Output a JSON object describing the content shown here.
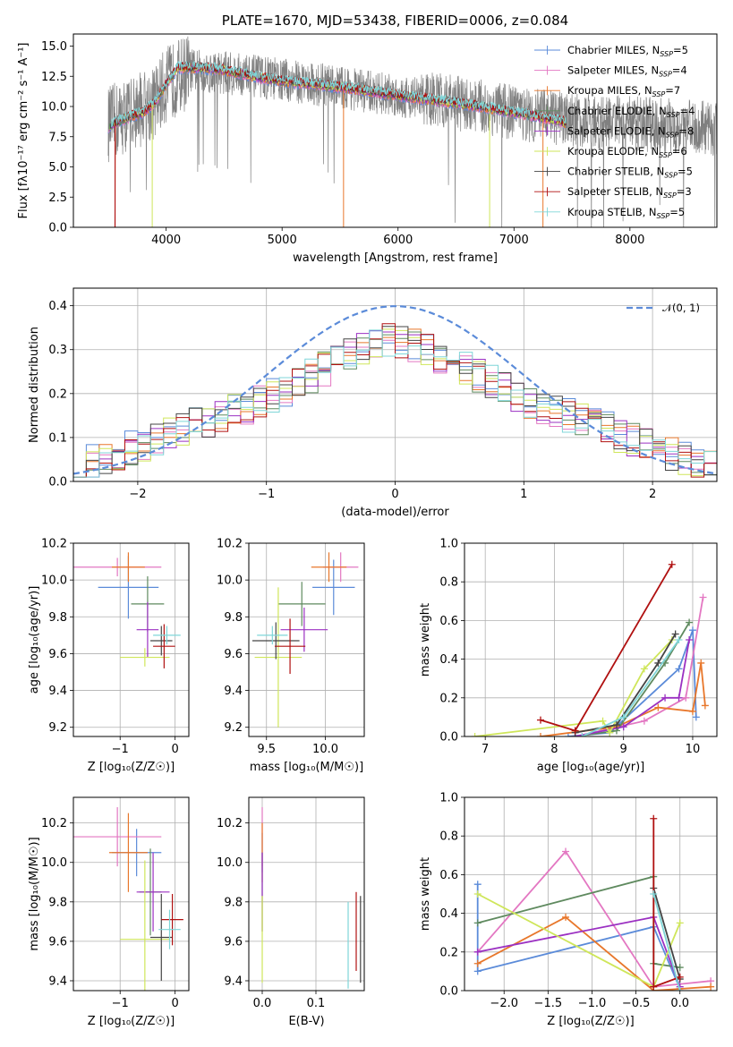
{
  "colors": {
    "chabrier_miles": "#5b8bd9",
    "salpeter_miles": "#e377c2",
    "kroupa_miles": "#e8772b",
    "chabrier_elodie": "#5f8a5f",
    "salpeter_elodie": "#9b30c2",
    "kroupa_elodie": "#cfe65a",
    "chabrier_stelib": "#444444",
    "salpeter_stelib": "#b01010",
    "kroupa_stelib": "#7fd6d8",
    "data_grey": "#808080",
    "normal_curve": "#5b8bd9"
  },
  "chart_data": [
    {
      "id": "spectrum",
      "type": "line",
      "title": "PLATE=1670, MJD=53438, FIBERID=0006, z=0.084",
      "xlabel": "wavelength [Angstrom, rest frame]",
      "ylabel": "Flux [fλ10⁻¹⁷ erg cm⁻² s⁻¹ A⁻¹]",
      "xlim": [
        3200,
        8750
      ],
      "ylim": [
        0,
        16
      ],
      "xticks": [
        4000,
        5000,
        6000,
        7000,
        8000
      ],
      "yticks": [
        0.0,
        2.5,
        5.0,
        7.5,
        10.0,
        12.5,
        15.0
      ],
      "grid": false,
      "legend": "upper right",
      "legend_entries": [
        "Chabrier MILES, N_SSP=5",
        "Salpeter MILES, N_SSP=4",
        "Kroupa MILES, N_SSP=7",
        "Chabrier ELODIE, N_SSP=4",
        "Salpeter ELODIE, N_SSP=8",
        "Kroupa ELODIE, N_SSP=6",
        "Chabrier STELIB, N_SSP=5",
        "Salpeter STELIB, N_SSP=3",
        "Kroupa STELIB, N_SSP=5"
      ],
      "model_continuum": {
        "x": [
          3500,
          3600,
          3700,
          3800,
          3900,
          4000,
          4100,
          4300,
          4500,
          4800,
          5000,
          5500,
          6000,
          6500,
          7000,
          7300,
          7600
        ],
        "y": [
          8.3,
          8.8,
          9.2,
          9.5,
          10.3,
          11.8,
          13.2,
          13.2,
          13.0,
          12.4,
          12.1,
          11.6,
          10.9,
          10.3,
          9.5,
          9.0,
          8.3
        ]
      },
      "data_continuum": {
        "x": [
          3500,
          3700,
          3900,
          4000,
          4200,
          4500,
          5000,
          5500,
          6000,
          6500,
          7000,
          7500,
          8000,
          8500,
          8750
        ],
        "y": [
          8.5,
          9.5,
          10.3,
          11.8,
          13.0,
          12.8,
          12.2,
          11.6,
          10.9,
          10.3,
          9.5,
          8.9,
          8.6,
          8.3,
          8.2
        ]
      },
      "model_wavelength_range": [
        3500,
        7450
      ],
      "data_wavelength_range": [
        3500,
        8750
      ]
    },
    {
      "id": "residuals",
      "type": "line",
      "xlabel": "(data-model)/error",
      "ylabel": "Normed distribution",
      "xlim": [
        -2.5,
        2.5
      ],
      "ylim": [
        0,
        0.44
      ],
      "xticks": [
        -2,
        -1,
        0,
        1,
        2
      ],
      "yticks": [
        0.0,
        0.1,
        0.2,
        0.3,
        0.4
      ],
      "grid": true,
      "legend": "upper right",
      "legend_entries": [
        "𝒩(0, 1)"
      ],
      "bin_width": 0.1,
      "histogram_envelope": [
        0.035,
        0.045,
        0.055,
        0.065,
        0.075,
        0.085,
        0.095,
        0.105,
        0.12,
        0.13,
        0.14,
        0.15,
        0.16,
        0.17,
        0.18,
        0.195,
        0.21,
        0.225,
        0.24,
        0.255,
        0.27,
        0.285,
        0.3,
        0.31,
        0.32,
        0.33,
        0.335,
        0.34,
        0.345,
        0.35,
        0.35,
        0.345,
        0.335,
        0.325,
        0.315,
        0.3,
        0.29,
        0.28,
        0.27,
        0.26,
        0.25,
        0.235,
        0.22,
        0.205,
        0.19,
        0.17,
        0.155,
        0.14,
        0.125,
        0.11
      ]
    },
    {
      "id": "age_vs_Z",
      "type": "scatter",
      "xlabel": "Z [log₁₀(Z/Z☉)]",
      "ylabel": "age  [log₁₀(age/yr)]",
      "xlim": [
        -1.85,
        0.25
      ],
      "ylim": [
        9.15,
        10.2
      ],
      "xticks": [
        -1,
        0
      ],
      "yticks": [
        9.2,
        9.4,
        9.6,
        9.8,
        10.0,
        10.2
      ],
      "grid": true,
      "points": [
        {
          "model": "chabrier_miles",
          "x": -0.85,
          "xerr": 0.55,
          "y": 9.96,
          "yerr": 0.17
        },
        {
          "model": "salpeter_miles",
          "x": -1.05,
          "xerr": 0.8,
          "y": 10.07,
          "yerr": 0.05
        },
        {
          "model": "kroupa_miles",
          "x": -0.85,
          "xerr": 0.3,
          "y": 10.07,
          "yerr": 0.08
        },
        {
          "model": "chabrier_elodie",
          "x": -0.5,
          "xerr": 0.3,
          "y": 9.87,
          "yerr": 0.15
        },
        {
          "model": "salpeter_elodie",
          "x": -0.5,
          "xerr": 0.2,
          "y": 9.73,
          "yerr": 0.15
        },
        {
          "model": "kroupa_elodie",
          "x": -0.55,
          "xerr": 0.45,
          "y": 9.58,
          "yerr": 0.05
        },
        {
          "model": "chabrier_stelib",
          "x": -0.25,
          "xerr": 0.2,
          "y": 9.67,
          "yerr": 0.08
        },
        {
          "model": "salpeter_stelib",
          "x": -0.2,
          "xerr": 0.2,
          "y": 9.64,
          "yerr": 0.12
        },
        {
          "model": "kroupa_stelib",
          "x": -0.15,
          "xerr": 0.25,
          "y": 9.7,
          "yerr": 0.05
        }
      ]
    },
    {
      "id": "age_vs_mass",
      "type": "scatter",
      "xlabel": "mass [log₁₀(M/M☉)]",
      "ylabel": "",
      "xlim": [
        9.35,
        10.33
      ],
      "ylim": [
        9.15,
        10.2
      ],
      "xticks": [
        9.5,
        10.0
      ],
      "yticks": [
        9.2,
        9.4,
        9.6,
        9.8,
        10.0,
        10.2
      ],
      "grid": true,
      "points": [
        {
          "model": "chabrier_miles",
          "x": 10.07,
          "xerr": 0.18,
          "y": 9.96,
          "yerr": 0.15
        },
        {
          "model": "salpeter_miles",
          "x": 10.13,
          "xerr": 0.15,
          "y": 10.07,
          "yerr": 0.08
        },
        {
          "model": "kroupa_miles",
          "x": 10.03,
          "xerr": 0.15,
          "y": 10.07,
          "yerr": 0.08
        },
        {
          "model": "chabrier_elodie",
          "x": 9.8,
          "xerr": 0.2,
          "y": 9.87,
          "yerr": 0.12
        },
        {
          "model": "salpeter_elodie",
          "x": 9.82,
          "xerr": 0.2,
          "y": 9.73,
          "yerr": 0.12
        },
        {
          "model": "kroupa_elodie",
          "x": 9.6,
          "xerr": 0.2,
          "y": 9.58,
          "yerr": 0.38
        },
        {
          "model": "chabrier_stelib",
          "x": 9.58,
          "xerr": 0.2,
          "y": 9.67,
          "yerr": 0.1
        },
        {
          "model": "salpeter_stelib",
          "x": 9.7,
          "xerr": 0.13,
          "y": 9.64,
          "yerr": 0.15
        },
        {
          "model": "kroupa_stelib",
          "x": 9.55,
          "xerr": 0.13,
          "y": 9.7,
          "yerr": 0.05
        }
      ]
    },
    {
      "id": "weight_vs_age",
      "type": "line",
      "xlabel": "age  [log₁₀(age/yr)]",
      "ylabel": "mass weight",
      "xlim": [
        6.7,
        10.35
      ],
      "ylim": [
        0,
        1.0
      ],
      "xticks": [
        7,
        8,
        9,
        10
      ],
      "yticks": [
        0.0,
        0.2,
        0.4,
        0.6,
        0.8,
        1.0
      ],
      "grid": true,
      "series": [
        {
          "model": "chabrier_miles",
          "x": [
            8.2,
            8.8,
            9.8,
            10.0,
            10.05
          ],
          "y": [
            0.0,
            0.02,
            0.35,
            0.55,
            0.1
          ]
        },
        {
          "model": "salpeter_miles",
          "x": [
            8.3,
            9.3,
            9.9,
            10.15
          ],
          "y": [
            0.0,
            0.08,
            0.2,
            0.72
          ]
        },
        {
          "model": "kroupa_miles",
          "x": [
            7.8,
            8.9,
            9.5,
            10.0,
            10.12,
            10.18
          ],
          "y": [
            0.0,
            0.05,
            0.15,
            0.13,
            0.38,
            0.16
          ]
        },
        {
          "model": "chabrier_elodie",
          "x": [
            8.3,
            8.9,
            9.6,
            9.95
          ],
          "y": [
            0.0,
            0.03,
            0.38,
            0.59
          ]
        },
        {
          "model": "salpeter_elodie",
          "x": [
            8.3,
            9.0,
            9.6,
            9.8,
            9.95
          ],
          "y": [
            0.0,
            0.05,
            0.2,
            0.2,
            0.5
          ]
        },
        {
          "model": "kroupa_elodie",
          "x": [
            6.85,
            8.7,
            8.8,
            9.3,
            9.7
          ],
          "y": [
            0.0,
            0.08,
            0.02,
            0.35,
            0.5
          ]
        },
        {
          "model": "chabrier_stelib",
          "x": [
            8.3,
            8.9,
            9.5,
            9.75
          ],
          "y": [
            0.02,
            0.06,
            0.38,
            0.53
          ]
        },
        {
          "model": "salpeter_stelib",
          "x": [
            7.8,
            8.3,
            9.7
          ],
          "y": [
            0.085,
            0.03,
            0.89
          ]
        },
        {
          "model": "kroupa_stelib",
          "x": [
            8.4,
            9.0,
            9.8
          ],
          "y": [
            0.0,
            0.1,
            0.5
          ]
        }
      ]
    },
    {
      "id": "mass_vs_Z",
      "type": "scatter",
      "xlabel": "Z [log₁₀(Z/Z☉)]",
      "ylabel": "mass [log₁₀(M/M☉)]",
      "xlim": [
        -1.85,
        0.25
      ],
      "ylim": [
        9.35,
        10.33
      ],
      "xticks": [
        -1,
        0
      ],
      "yticks": [
        9.4,
        9.6,
        9.8,
        10.0,
        10.2
      ],
      "grid": true,
      "points": [
        {
          "model": "chabrier_miles",
          "x": -0.7,
          "xerr": 0.45,
          "y": 10.05,
          "yerr": 0.12
        },
        {
          "model": "salpeter_miles",
          "x": -1.05,
          "xerr": 0.8,
          "y": 10.13,
          "yerr": 0.15
        },
        {
          "model": "kroupa_miles",
          "x": -0.85,
          "xerr": 0.35,
          "y": 10.05,
          "yerr": 0.2
        },
        {
          "model": "chabrier_elodie",
          "x": -0.45,
          "xerr": 0.2,
          "y": 9.85,
          "yerr": 0.22
        },
        {
          "model": "salpeter_elodie",
          "x": -0.4,
          "xerr": 0.3,
          "y": 9.85,
          "yerr": 0.2
        },
        {
          "model": "kroupa_elodie",
          "x": -0.55,
          "xerr": 0.45,
          "y": 9.61,
          "yerr": 0.4
        },
        {
          "model": "chabrier_stelib",
          "x": -0.25,
          "xerr": 0.2,
          "y": 9.62,
          "yerr": 0.22
        },
        {
          "model": "salpeter_stelib",
          "x": -0.05,
          "xerr": 0.2,
          "y": 9.71,
          "yerr": 0.13
        },
        {
          "model": "kroupa_stelib",
          "x": -0.1,
          "xerr": 0.2,
          "y": 9.66,
          "yerr": 0.1
        }
      ]
    },
    {
      "id": "mass_vs_EBV",
      "type": "scatter",
      "xlabel": "E(B-V)",
      "ylabel": "",
      "xlim": [
        -0.025,
        0.19
      ],
      "ylim": [
        9.35,
        10.33
      ],
      "xticks": [
        0.0,
        0.1
      ],
      "yticks": [
        9.4,
        9.6,
        9.8,
        10.0,
        10.2
      ],
      "grid": true,
      "points": [
        {
          "model": "chabrier_miles",
          "x": 0.0,
          "y": 10.05,
          "yerr": 0.1
        },
        {
          "model": "salpeter_miles",
          "x": 0.0,
          "y": 10.13,
          "yerr": 0.15
        },
        {
          "model": "kroupa_miles",
          "x": 0.0,
          "y": 10.05,
          "yerr": 0.15
        },
        {
          "model": "chabrier_elodie",
          "x": 0.0,
          "y": 9.85,
          "yerr": 0.2
        },
        {
          "model": "salpeter_elodie",
          "x": 0.0,
          "y": 9.85,
          "yerr": 0.2
        },
        {
          "model": "kroupa_elodie",
          "x": 0.0,
          "y": 9.61,
          "yerr": 0.22
        },
        {
          "model": "chabrier_stelib",
          "x": 0.183,
          "y": 9.61,
          "yerr": 0.22
        },
        {
          "model": "salpeter_stelib",
          "x": 0.175,
          "y": 9.65,
          "yerr": 0.2
        },
        {
          "model": "kroupa_stelib",
          "x": 0.16,
          "y": 9.58,
          "yerr": 0.22
        }
      ]
    },
    {
      "id": "weight_vs_Z",
      "type": "line",
      "xlabel": "Z [log₁₀(Z/Z☉)]",
      "ylabel": "mass weight",
      "xlim": [
        -2.45,
        0.42
      ],
      "ylim": [
        0,
        1.0
      ],
      "xticks": [
        -2.0,
        -1.5,
        -1.0,
        -0.5,
        0.0
      ],
      "yticks": [
        0.0,
        0.2,
        0.4,
        0.6,
        0.8,
        1.0
      ],
      "grid": true,
      "series": [
        {
          "model": "chabrier_miles",
          "x": [
            -2.3,
            -2.3,
            -0.3,
            0.0
          ],
          "y": [
            0.55,
            0.1,
            0.33,
            0.01
          ]
        },
        {
          "model": "salpeter_miles",
          "x": [
            -2.3,
            -1.3,
            -0.3,
            0.35
          ],
          "y": [
            0.2,
            0.72,
            0.02,
            0.05
          ]
        },
        {
          "model": "kroupa_miles",
          "x": [
            -2.3,
            -1.3,
            -0.3,
            0.35
          ],
          "y": [
            0.14,
            0.38,
            0.0,
            0.02
          ]
        },
        {
          "model": "chabrier_elodie",
          "x": [
            -2.3,
            -0.3,
            -0.3,
            0.0
          ],
          "y": [
            0.35,
            0.59,
            0.14,
            0.12
          ]
        },
        {
          "model": "salpeter_elodie",
          "x": [
            -2.3,
            -0.3,
            0.0
          ],
          "y": [
            0.2,
            0.38,
            0.02
          ]
        },
        {
          "model": "kroupa_elodie",
          "x": [
            -2.3,
            -0.3,
            0.0
          ],
          "y": [
            0.5,
            0.02,
            0.35
          ]
        },
        {
          "model": "chabrier_stelib",
          "x": [
            -0.3,
            0.0
          ],
          "y": [
            0.53,
            0.06
          ]
        },
        {
          "model": "salpeter_stelib",
          "x": [
            -0.3,
            -0.3,
            0.0
          ],
          "y": [
            0.89,
            0.02,
            0.07
          ]
        },
        {
          "model": "kroupa_stelib",
          "x": [
            -0.3,
            0.0
          ],
          "y": [
            0.5,
            0.0
          ]
        }
      ]
    }
  ]
}
